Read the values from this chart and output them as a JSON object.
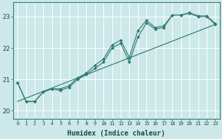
{
  "xlabel": "Humidex (Indice chaleur)",
  "bg_color": "#cce8e8",
  "grid_color": "#ffffff",
  "line_color": "#2d7a6e",
  "xlim": [
    -0.5,
    23.5
  ],
  "ylim": [
    19.75,
    23.45
  ],
  "yticks": [
    20,
    21,
    22,
    23
  ],
  "xticks": [
    0,
    1,
    2,
    3,
    4,
    5,
    6,
    7,
    8,
    9,
    10,
    11,
    12,
    13,
    14,
    15,
    16,
    17,
    18,
    19,
    20,
    21,
    22,
    23
  ],
  "series1": [
    20.9,
    20.3,
    20.3,
    20.6,
    20.7,
    20.65,
    20.75,
    21.0,
    21.15,
    21.35,
    21.55,
    22.0,
    22.15,
    21.55,
    22.35,
    22.8,
    22.6,
    22.65,
    23.05,
    23.05,
    23.1,
    23.0,
    23.0,
    22.75
  ],
  "series2": [
    20.9,
    20.3,
    20.3,
    20.6,
    20.7,
    20.7,
    20.8,
    21.05,
    21.2,
    21.45,
    21.65,
    22.1,
    22.25,
    21.7,
    22.55,
    22.88,
    22.65,
    22.7,
    23.05,
    23.05,
    23.12,
    23.02,
    23.02,
    22.78
  ],
  "series3_x": [
    0,
    23
  ],
  "series3_y": [
    20.3,
    22.75
  ]
}
